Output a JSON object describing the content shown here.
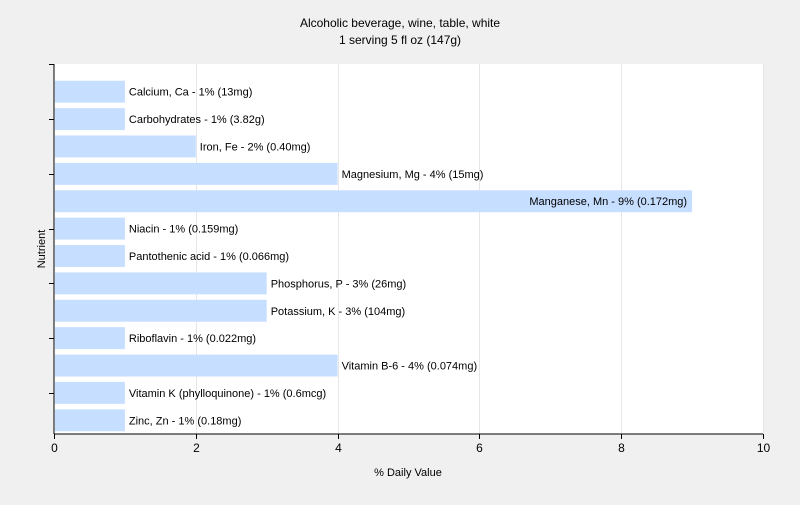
{
  "chart_data": {
    "type": "bar",
    "orientation": "horizontal",
    "title": "Alcoholic beverage, wine, table, white",
    "subtitle": "1 serving 5 fl oz (147g)",
    "xlabel": "% Daily Value",
    "ylabel": "Nutrient",
    "xlim": [
      0,
      10
    ],
    "xticks": [
      "0",
      "2",
      "4",
      "6",
      "8",
      "10"
    ],
    "grid": true,
    "bar_color": "#c6deff",
    "categories": [
      "Calcium, Ca",
      "Carbohydrates",
      "Iron, Fe",
      "Magnesium, Mg",
      "Manganese, Mn",
      "Niacin",
      "Pantothenic acid",
      "Phosphorus, P",
      "Potassium, K",
      "Riboflavin",
      "Vitamin B-6",
      "Vitamin K (phylloquinone)",
      "Zinc, Zn"
    ],
    "values": [
      1,
      1,
      2,
      4,
      9,
      1,
      1,
      3,
      3,
      1,
      4,
      1,
      1
    ],
    "labels": [
      "Calcium, Ca - 1% (13mg)",
      "Carbohydrates - 1% (3.82g)",
      "Iron, Fe - 2% (0.40mg)",
      "Magnesium, Mg - 4% (15mg)",
      "Manganese, Mn - 9% (0.172mg)",
      "Niacin - 1% (0.159mg)",
      "Pantothenic acid - 1% (0.066mg)",
      "Phosphorus, P - 3% (26mg)",
      "Potassium, K - 3% (104mg)",
      "Riboflavin - 1% (0.022mg)",
      "Vitamin B-6 - 4% (0.074mg)",
      "Vitamin K (phylloquinone) - 1% (0.6mcg)",
      "Zinc, Zn - 1% (0.18mg)"
    ]
  }
}
